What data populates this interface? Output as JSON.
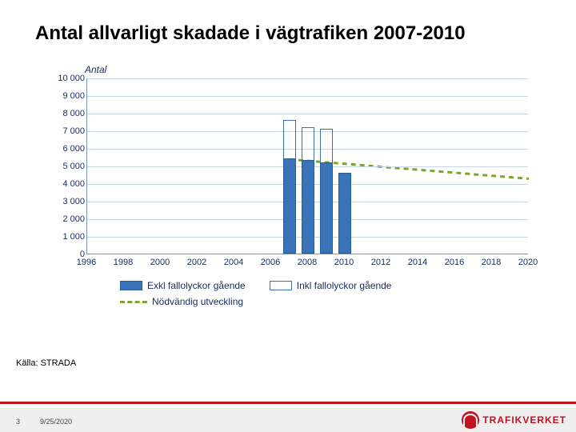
{
  "slide": {
    "title": "Antal allvarligt skadade i vägtrafiken 2007-2010",
    "source": "Källa: STRADA",
    "footer": {
      "page": "3",
      "date": "9/25/2020",
      "logo_text": "TRAFIKVERKET"
    }
  },
  "chart": {
    "type": "bar",
    "ylabel": "Antal",
    "ylim": [
      0,
      10000
    ],
    "ytick_step": 1000,
    "yticks": [
      "0",
      "1 000",
      "2 000",
      "3 000",
      "4 000",
      "5 000",
      "6 000",
      "7 000",
      "8 000",
      "9 000",
      "10 000"
    ],
    "x_years_range": [
      1996,
      2020
    ],
    "xticks": [
      "1996",
      "1998",
      "2000",
      "2002",
      "2004",
      "2006",
      "2008",
      "2010",
      "2012",
      "2014",
      "2016",
      "2018",
      "2020"
    ],
    "bar_fill_color": "#3a74b8",
    "bar_border_color": "#2a5a98",
    "bar_outline_color": "#3a6fb0",
    "grid_color": "#c9d4e4",
    "axis_color": "#7a92b8",
    "tick_font_color": "#1a2a5a",
    "bars": [
      {
        "year": 2007,
        "excl": 5400,
        "incl": 7600
      },
      {
        "year": 2008,
        "excl": 5300,
        "incl": 7200
      },
      {
        "year": 2009,
        "excl": 5200,
        "incl": 7100
      },
      {
        "year": 2010,
        "excl": 4600,
        "incl": null
      }
    ],
    "trend": {
      "color": "#7aa62a",
      "dash": "6,5",
      "width": 3,
      "points": [
        {
          "year": 2007,
          "value": 5400
        },
        {
          "year": 2020,
          "value": 4300
        }
      ]
    },
    "legend": {
      "excl": "Exkl fallolyckor gående",
      "incl": "Inkl fallolyckor gående",
      "trend": "Nödvändig utveckling"
    },
    "bar_width_years": 0.7
  },
  "style": {
    "title_fontsize": 24,
    "title_color": "#000000",
    "background_color": "#ffffff",
    "footer_accent": "#c1121f",
    "footer_band": "#f0efef"
  }
}
